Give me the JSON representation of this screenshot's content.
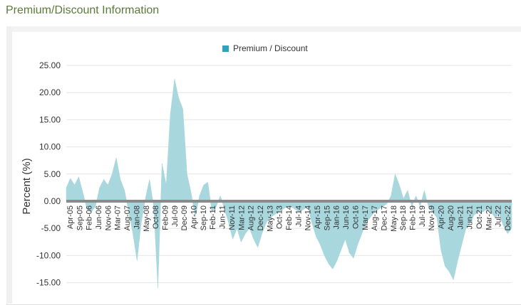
{
  "page": {
    "section_title": "Premium/Discount Information"
  },
  "chart_data": {
    "type": "area",
    "title": "",
    "ylabel": "Percent (%)",
    "xlabel": "",
    "legend": {
      "position": "top-center",
      "entries": [
        "Premium / Discount"
      ]
    },
    "grid": {
      "horizontal": true,
      "vertical": false
    },
    "ylim": [
      -16.5,
      25
    ],
    "y_ticks": [
      25,
      20,
      15,
      10,
      5,
      0,
      -5,
      -10,
      -15
    ],
    "y_tick_labels": [
      "25.00",
      "20.00",
      "15.00",
      "10.00",
      "5.00",
      "0.00",
      "-5.00",
      "-10.00",
      "-15.00"
    ],
    "x_ticks": [
      "Apr-05",
      "Sep-05",
      "Feb-06",
      "Jun-06",
      "Nov-06",
      "Mar-07",
      "Aug-07",
      "Jan-08",
      "May-08",
      "Oct-08",
      "Feb-09",
      "Jul-09",
      "Dec-09",
      "Apr-10",
      "Sep-10",
      "Feb-11",
      "Jun-11",
      "Nov-11",
      "Mar-12",
      "Aug-12",
      "Dec-12",
      "May-13",
      "Oct-13",
      "Feb-14",
      "Jul-14",
      "Nov-14",
      "Apr-15",
      "Sep-15",
      "Jan-16",
      "Jun-16",
      "Oct-16",
      "Mar-17",
      "Aug-17",
      "Dec-17",
      "May-18",
      "Sep-18",
      "Feb-19",
      "Jul-19",
      "Nov-19",
      "Apr-20",
      "Aug-20",
      "Jan-21",
      "Jun-21",
      "Oct-21",
      "Mar-22",
      "Jul-22",
      "Dec-22"
    ],
    "series": [
      {
        "name": "Premium / Discount",
        "color": "#a9d7de",
        "points": [
          [
            "2005-04",
            2.5
          ],
          [
            "2005-06",
            4.2
          ],
          [
            "2005-08",
            3.0
          ],
          [
            "2005-10",
            4.5
          ],
          [
            "2005-12",
            1.5
          ],
          [
            "2006-02",
            -1.5
          ],
          [
            "2006-04",
            -2.0
          ],
          [
            "2006-06",
            -1.0
          ],
          [
            "2006-08",
            2.5
          ],
          [
            "2006-10",
            4.0
          ],
          [
            "2006-12",
            3.0
          ],
          [
            "2007-02",
            5.0
          ],
          [
            "2007-04",
            8.0
          ],
          [
            "2007-06",
            4.0
          ],
          [
            "2007-08",
            2.0
          ],
          [
            "2007-10",
            -2.0
          ],
          [
            "2007-12",
            -6.0
          ],
          [
            "2008-02",
            -11.0
          ],
          [
            "2008-04",
            -4.0
          ],
          [
            "2008-06",
            0.5
          ],
          [
            "2008-08",
            4.0
          ],
          [
            "2008-10",
            -1.0
          ],
          [
            "2008-12",
            -16.0
          ],
          [
            "2009-02",
            7.0
          ],
          [
            "2009-04",
            3.0
          ],
          [
            "2009-06",
            16.0
          ],
          [
            "2009-08",
            22.5
          ],
          [
            "2009-10",
            19.0
          ],
          [
            "2009-12",
            17.0
          ],
          [
            "2010-02",
            5.0
          ],
          [
            "2010-04",
            1.5
          ],
          [
            "2010-06",
            -3.0
          ],
          [
            "2010-08",
            1.0
          ],
          [
            "2010-10",
            3.0
          ],
          [
            "2010-12",
            3.5
          ],
          [
            "2011-02",
            -2.0
          ],
          [
            "2011-04",
            -1.0
          ],
          [
            "2011-06",
            1.0
          ],
          [
            "2011-08",
            -1.5
          ],
          [
            "2011-10",
            -4.0
          ],
          [
            "2011-12",
            -7.0
          ],
          [
            "2012-02",
            -5.0
          ],
          [
            "2012-04",
            -7.5
          ],
          [
            "2012-06",
            -6.0
          ],
          [
            "2012-08",
            -5.0
          ],
          [
            "2012-10",
            -7.0
          ],
          [
            "2012-12",
            -8.5
          ],
          [
            "2013-02",
            -6.0
          ],
          [
            "2013-04",
            -4.0
          ],
          [
            "2013-06",
            -3.0
          ],
          [
            "2013-08",
            -2.5
          ],
          [
            "2013-10",
            -2.0
          ],
          [
            "2013-12",
            -1.5
          ],
          [
            "2014-02",
            -1.0
          ],
          [
            "2014-04",
            -1.0
          ],
          [
            "2014-06",
            -1.5
          ],
          [
            "2014-08",
            -2.0
          ],
          [
            "2014-10",
            -1.5
          ],
          [
            "2014-12",
            -1.0
          ],
          [
            "2015-02",
            -4.0
          ],
          [
            "2015-04",
            -6.5
          ],
          [
            "2015-06",
            -8.0
          ],
          [
            "2015-08",
            -10.0
          ],
          [
            "2015-10",
            -11.5
          ],
          [
            "2015-12",
            -12.5
          ],
          [
            "2016-02",
            -11.0
          ],
          [
            "2016-04",
            -9.0
          ],
          [
            "2016-06",
            -7.0
          ],
          [
            "2016-08",
            -9.5
          ],
          [
            "2016-10",
            -10.5
          ],
          [
            "2016-12",
            -8.0
          ],
          [
            "2017-02",
            -6.0
          ],
          [
            "2017-04",
            -4.0
          ],
          [
            "2017-06",
            -3.0
          ],
          [
            "2017-08",
            -2.0
          ],
          [
            "2017-10",
            -1.5
          ],
          [
            "2017-12",
            -1.0
          ],
          [
            "2018-02",
            -0.5
          ],
          [
            "2018-04",
            1.0
          ],
          [
            "2018-06",
            5.0
          ],
          [
            "2018-08",
            3.0
          ],
          [
            "2018-10",
            0.5
          ],
          [
            "2018-12",
            2.0
          ],
          [
            "2019-02",
            -1.0
          ],
          [
            "2019-04",
            1.0
          ],
          [
            "2019-06",
            -1.0
          ],
          [
            "2019-08",
            2.0
          ],
          [
            "2019-10",
            -1.0
          ],
          [
            "2019-12",
            -2.0
          ],
          [
            "2020-02",
            -3.0
          ],
          [
            "2020-04",
            -9.0
          ],
          [
            "2020-06",
            -12.0
          ],
          [
            "2020-08",
            -13.0
          ],
          [
            "2020-10",
            -14.5
          ],
          [
            "2020-12",
            -11.0
          ],
          [
            "2021-02",
            -8.0
          ],
          [
            "2021-04",
            -5.0
          ],
          [
            "2021-06",
            -4.0
          ],
          [
            "2021-08",
            -2.5
          ],
          [
            "2021-10",
            -2.0
          ],
          [
            "2021-12",
            -2.0
          ],
          [
            "2022-02",
            -1.5
          ],
          [
            "2022-04",
            -2.0
          ],
          [
            "2022-06",
            -3.0
          ],
          [
            "2022-08",
            -2.5
          ],
          [
            "2022-10",
            -4.5
          ],
          [
            "2022-12",
            -6.0
          ],
          [
            "2023-02",
            -5.0
          ]
        ]
      }
    ]
  }
}
